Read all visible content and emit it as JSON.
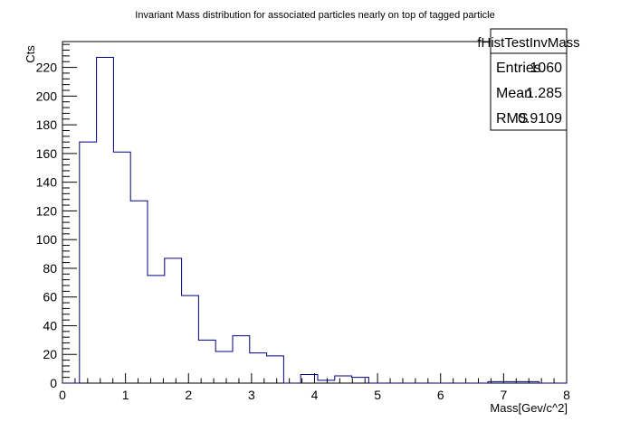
{
  "chart_data": {
    "type": "bar",
    "title": "Invariant Mass distribution for associated particles nearly on top of tagged particle",
    "xlabel": "Mass[Gev/c^2]",
    "ylabel": "Cts",
    "xlim": [
      0,
      8
    ],
    "ylim": [
      0,
      238
    ],
    "x_ticks": [
      0,
      1,
      2,
      3,
      4,
      5,
      6,
      7,
      8
    ],
    "y_ticks": [
      0,
      20,
      40,
      60,
      80,
      100,
      120,
      140,
      160,
      180,
      200,
      220
    ],
    "grid": false,
    "legend": "none",
    "series": [
      {
        "color": "#000080",
        "bin_edges": [
          0.0,
          0.27,
          0.54,
          0.81,
          1.08,
          1.35,
          1.62,
          1.89,
          2.16,
          2.43,
          2.7,
          2.97,
          3.24,
          3.51,
          3.78,
          4.05,
          4.32,
          4.59,
          4.86,
          5.13,
          5.4,
          5.67,
          5.94,
          6.21,
          6.48,
          6.75,
          7.02,
          7.29,
          7.56,
          7.83,
          8.1
        ],
        "values": [
          0,
          168,
          227,
          161,
          127,
          75,
          87,
          61,
          30,
          22,
          33,
          21,
          19,
          0,
          6,
          2,
          5,
          4,
          0,
          0,
          0,
          0,
          0,
          0,
          0,
          1,
          1,
          1,
          0,
          0
        ]
      }
    ]
  },
  "stats_box": {
    "name": "fHistTestInvMass",
    "entries_label": "Entries",
    "entries_value": "1060",
    "mean_label": "Mean",
    "mean_value": "1.285",
    "rms_label": "RMS",
    "rms_value": "0.9109"
  }
}
